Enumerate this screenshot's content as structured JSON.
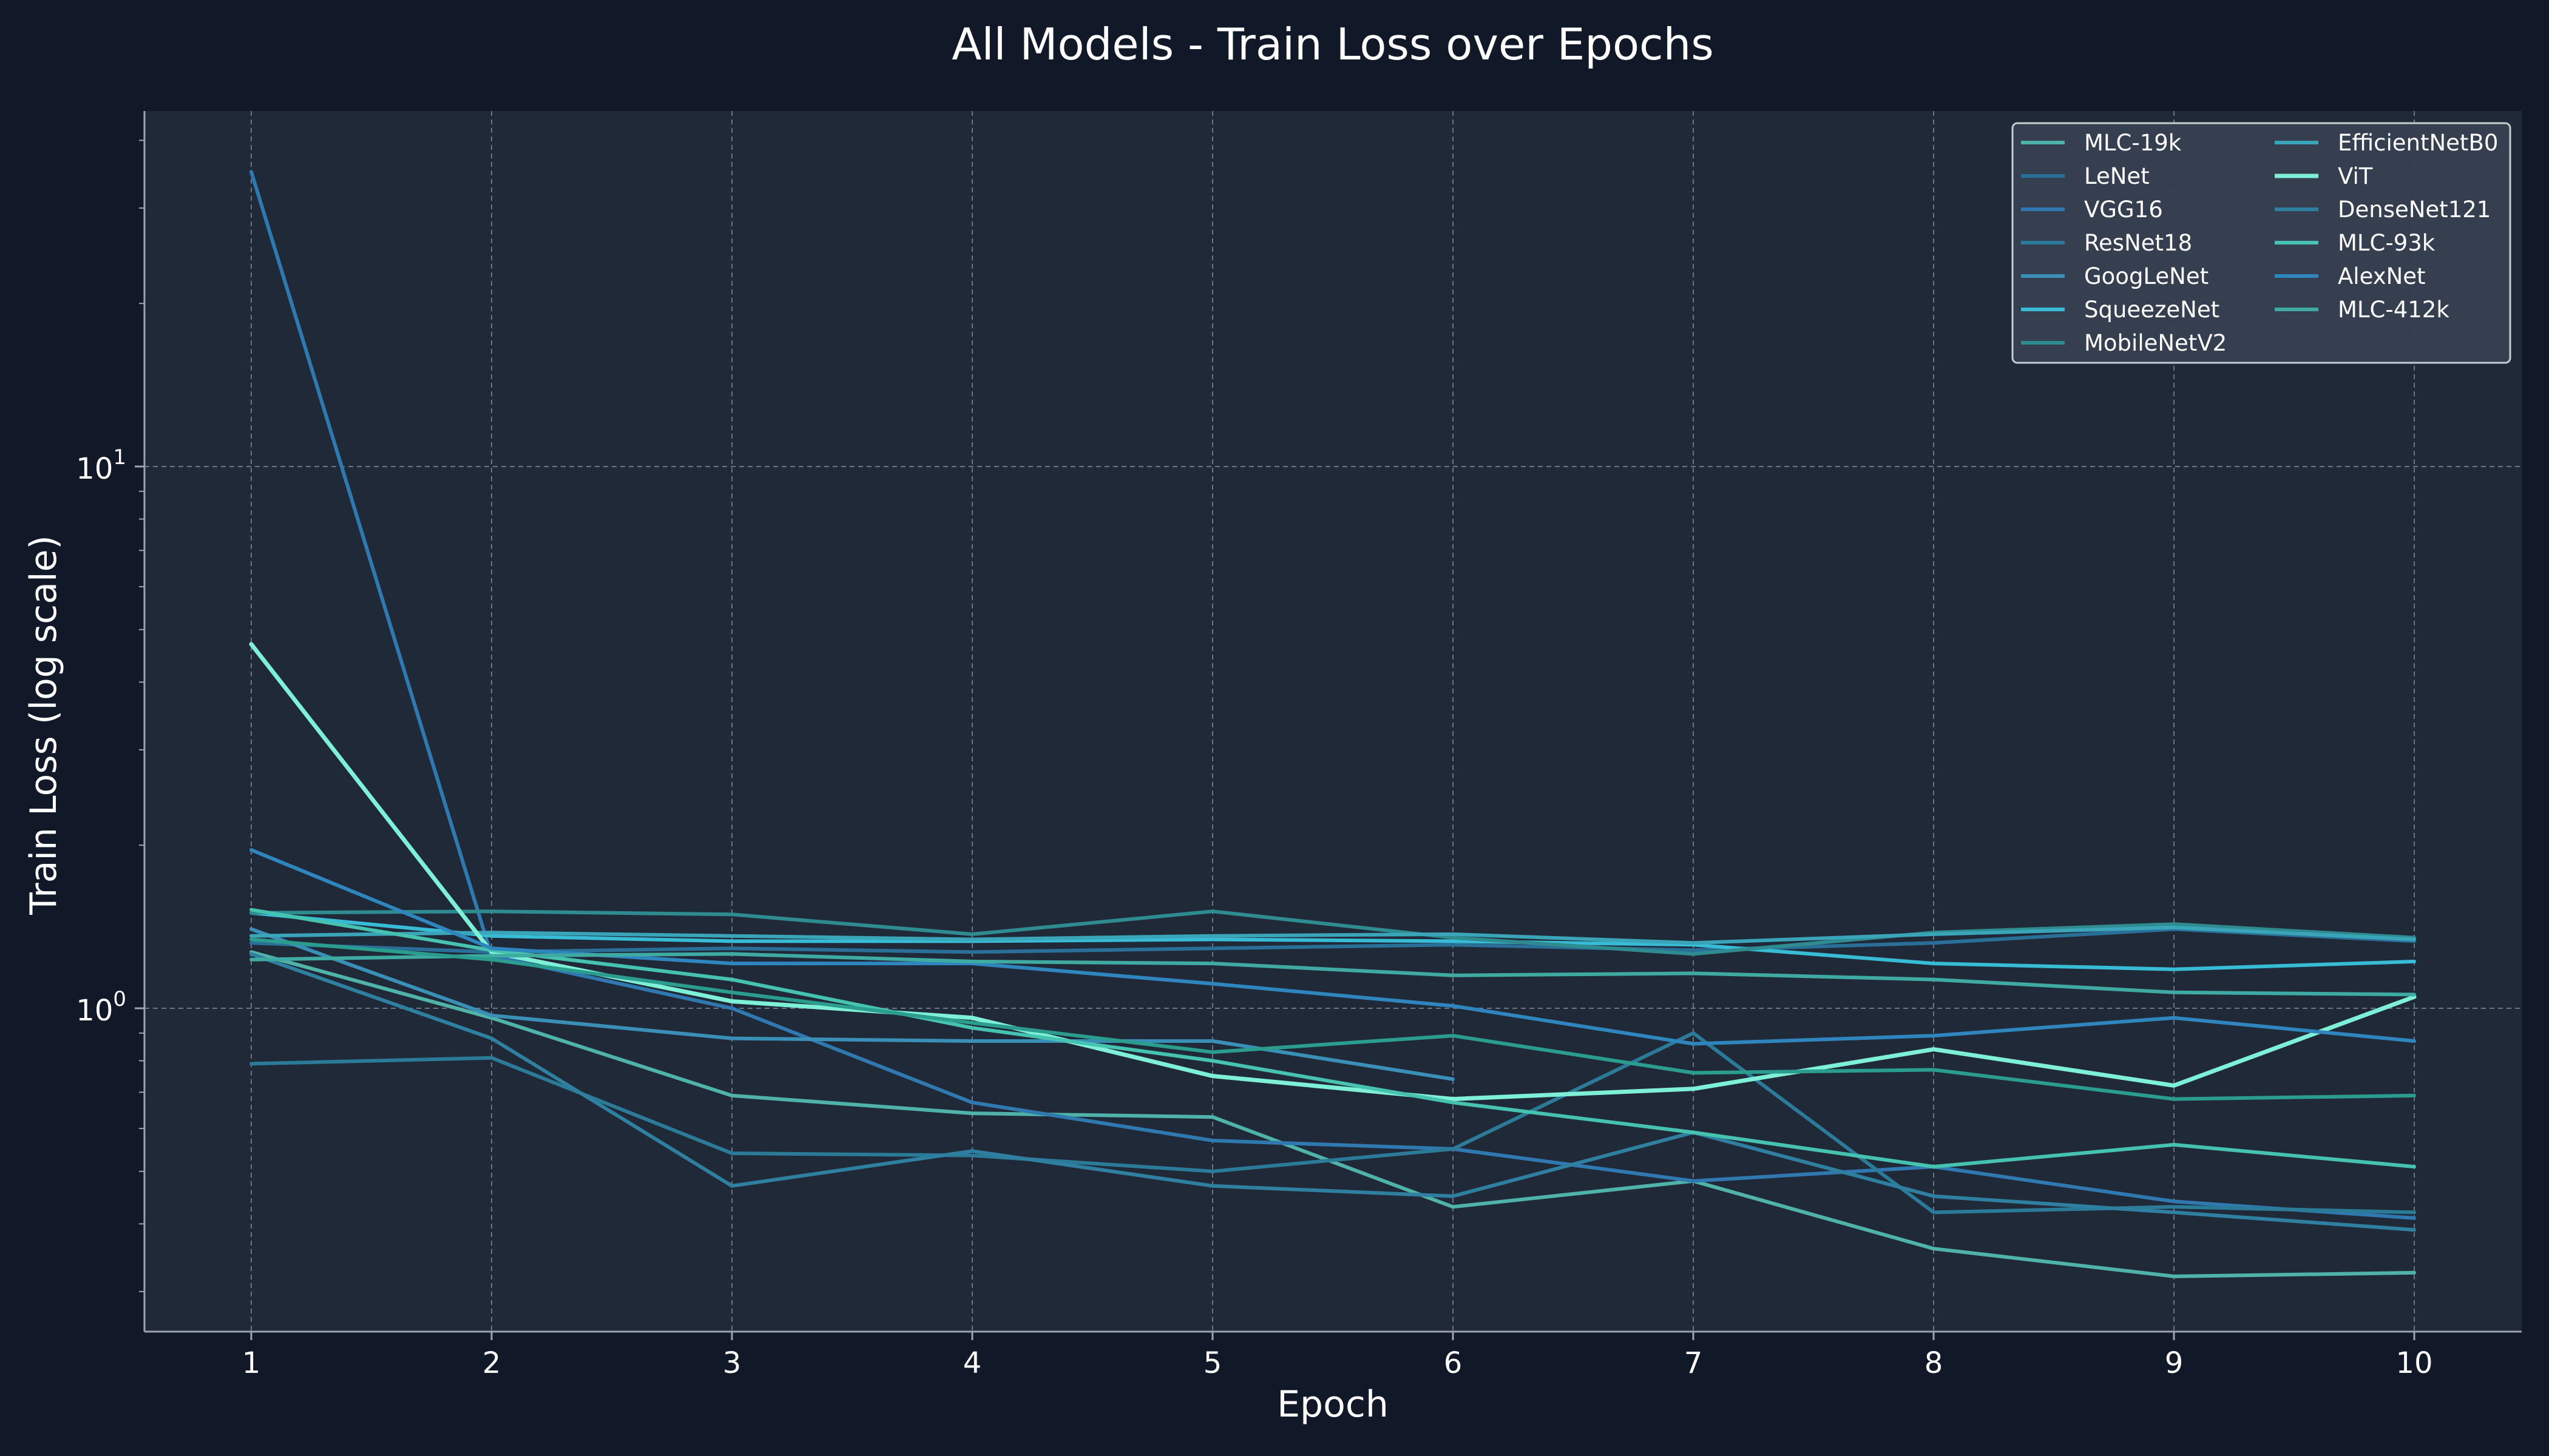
{
  "chart_data": {
    "type": "line",
    "title": "All Models - Train Loss over Epochs",
    "xlabel": "Epoch",
    "ylabel": "Train Loss (log scale)",
    "x": [
      1,
      2,
      3,
      4,
      5,
      6,
      7,
      8,
      9,
      10
    ],
    "x_ticks": [
      "1",
      "2",
      "3",
      "4",
      "5",
      "6",
      "7",
      "8",
      "9",
      "10"
    ],
    "y_scale": "log",
    "ylim": [
      0.25,
      45
    ],
    "y_ticks": [
      {
        "value": 1,
        "base": "10",
        "exp": "0"
      },
      {
        "value": 10,
        "base": "10",
        "exp": "1"
      }
    ],
    "grid": true,
    "legend_position": "top-right",
    "colors": {
      "background": "#111827",
      "plot_background": "#1f2937",
      "grid": "#8a94a6",
      "axis": "#9ca3af",
      "legend_background": "#374151",
      "legend_border": "#d1d5db",
      "text": "#ffffff"
    },
    "series": [
      {
        "name": "MLC-19k",
        "color": "#4fb3a9",
        "width": 6,
        "values": [
          1.27,
          0.96,
          0.69,
          0.64,
          0.63,
          0.43,
          0.48,
          0.36,
          0.32,
          0.325
        ]
      },
      {
        "name": "LeNet",
        "color": "#2a6f97",
        "width": 6,
        "values": [
          1.32,
          1.27,
          1.29,
          1.27,
          1.29,
          1.31,
          1.28,
          1.32,
          1.4,
          1.33
        ]
      },
      {
        "name": "VGG16",
        "color": "#2f78b0",
        "width": 6,
        "values": [
          35.0,
          1.25,
          1.0,
          0.67,
          0.57,
          0.55,
          0.48,
          0.51,
          0.44,
          0.41
        ]
      },
      {
        "name": "ResNet18",
        "color": "#2b7a98",
        "width": 6,
        "values": [
          0.79,
          0.81,
          0.54,
          0.535,
          0.5,
          0.55,
          0.9,
          0.42,
          0.43,
          0.42
        ]
      },
      {
        "name": "GoogLeNet",
        "color": "#3a8fb7",
        "width": 6,
        "values": [
          1.4,
          0.97,
          0.88,
          0.87,
          0.87,
          0.74,
          null,
          null,
          null,
          null
        ]
      },
      {
        "name": "SqueezeNet",
        "color": "#38bcd6",
        "width": 6,
        "values": [
          1.5,
          1.36,
          1.33,
          1.33,
          1.34,
          1.33,
          1.31,
          1.21,
          1.18,
          1.22
        ]
      },
      {
        "name": "MobileNetV2",
        "color": "#2e8b8f",
        "width": 6,
        "values": [
          1.5,
          1.51,
          1.49,
          1.37,
          1.51,
          1.35,
          1.26,
          1.38,
          1.43,
          1.35
        ]
      },
      {
        "name": "EfficientNetB0",
        "color": "#3aa5b8",
        "width": 6,
        "values": [
          1.36,
          1.38,
          1.36,
          1.34,
          1.36,
          1.37,
          1.32,
          1.37,
          1.41,
          1.34
        ]
      },
      {
        "name": "ViT",
        "color": "#7ff0d8",
        "width": 7,
        "values": [
          4.7,
          1.27,
          1.03,
          0.96,
          0.75,
          0.68,
          0.71,
          0.84,
          0.72,
          1.05
        ]
      },
      {
        "name": "DenseNet121",
        "color": "#2e7fa0",
        "width": 6,
        "values": [
          1.26,
          0.88,
          0.47,
          0.545,
          0.47,
          0.45,
          0.59,
          0.45,
          0.42,
          0.39
        ]
      },
      {
        "name": "MLC-93k",
        "color": "#45c2b0",
        "width": 6,
        "values": [
          1.52,
          1.28,
          1.13,
          0.92,
          0.8,
          0.67,
          0.59,
          0.51,
          0.56,
          0.51
        ]
      },
      {
        "name": "AlexNet",
        "color": "#2f86bf",
        "width": 6,
        "values": [
          1.96,
          1.29,
          1.21,
          1.21,
          1.11,
          1.01,
          0.86,
          0.89,
          0.96,
          0.87
        ]
      },
      {
        "name": "MLC-412k",
        "color": "#3eaaa2",
        "width": 6,
        "values": [
          1.23,
          1.25,
          1.26,
          1.22,
          1.21,
          1.15,
          1.16,
          1.13,
          1.07,
          1.06
        ]
      },
      {
        "name": "",
        "color": "#2a9d8f",
        "width": 6,
        "values": [
          1.34,
          1.23,
          1.07,
          0.94,
          0.83,
          0.89,
          0.76,
          0.77,
          0.68,
          0.69
        ]
      }
    ]
  }
}
